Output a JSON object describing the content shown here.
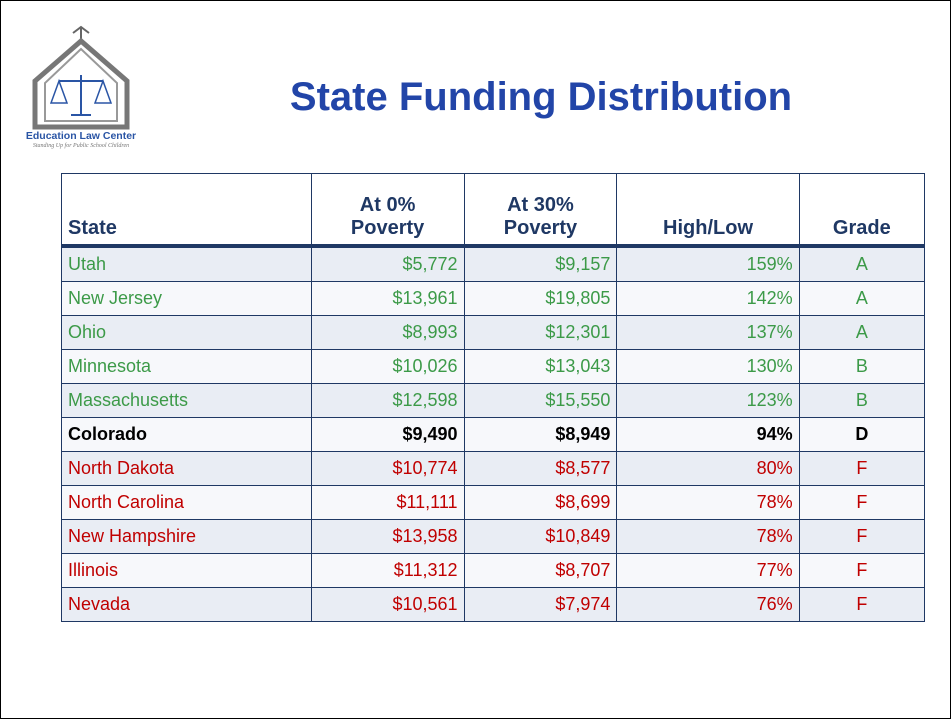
{
  "logo": {
    "name": "Education Law Center",
    "tagline": "Standing Up for Public School Children"
  },
  "title": "State Funding Distribution",
  "table": {
    "header": [
      "State",
      "At 0%\nPoverty",
      "At 30%\nPoverty",
      "High/Low",
      "Grade"
    ],
    "rows": [
      {
        "cells": [
          "Utah",
          "$5,772",
          "$9,157",
          "159%",
          "A"
        ],
        "color": "#3c9a48"
      },
      {
        "cells": [
          "New Jersey",
          "$13,961",
          "$19,805",
          "142%",
          "A"
        ],
        "color": "#3c9a48"
      },
      {
        "cells": [
          "Ohio",
          "$8,993",
          "$12,301",
          "137%",
          "A"
        ],
        "color": "#3c9a48"
      },
      {
        "cells": [
          "Minnesota",
          "$10,026",
          "$13,043",
          "130%",
          "B"
        ],
        "color": "#3c9a48"
      },
      {
        "cells": [
          "Massachusetts",
          "$12,598",
          "$15,550",
          "123%",
          "B"
        ],
        "color": "#3c9a48"
      },
      {
        "cells": [
          "Colorado",
          "$9,490",
          "$8,949",
          "94%",
          "D"
        ],
        "color": "#000000",
        "bold": true
      },
      {
        "cells": [
          "North Dakota",
          "$10,774",
          "$8,577",
          "80%",
          "F"
        ],
        "color": "#c00000"
      },
      {
        "cells": [
          "North Carolina",
          "$11,111",
          "$8,699",
          "78%",
          "F"
        ],
        "color": "#c00000"
      },
      {
        "cells": [
          "New Hampshire",
          "$13,958",
          "$10,849",
          "78%",
          "F"
        ],
        "color": "#c00000"
      },
      {
        "cells": [
          "Illinois",
          "$11,312",
          "$8,707",
          "77%",
          "F"
        ],
        "color": "#c00000"
      },
      {
        "cells": [
          "Nevada",
          "$10,561",
          "$7,974",
          "76%",
          "F"
        ],
        "color": "#c00000"
      }
    ]
  }
}
